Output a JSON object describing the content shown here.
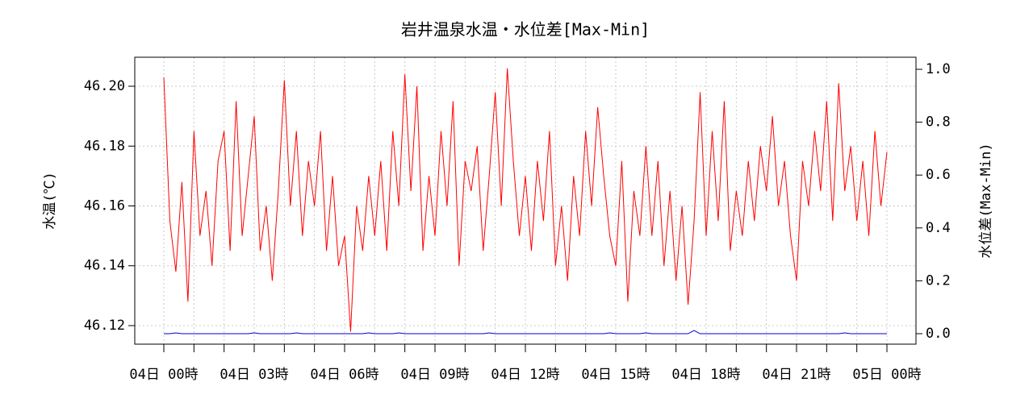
{
  "chart_data": {
    "type": "line",
    "title": "岩井温泉水温・水位差[Max-Min]",
    "ylabel": "水温(℃)",
    "y2label": "水位差(Max-Min)",
    "x": [
      0,
      0.2,
      0.4,
      0.6,
      0.8,
      1,
      1.2,
      1.4,
      1.6,
      1.8,
      2,
      2.2,
      2.4,
      2.6,
      2.8,
      3,
      3.2,
      3.4,
      3.6,
      3.8,
      4,
      4.2,
      4.4,
      4.6,
      4.8,
      5,
      5.2,
      5.4,
      5.6,
      5.8,
      6,
      6.2,
      6.4,
      6.6,
      6.8,
      7,
      7.2,
      7.4,
      7.6,
      7.8,
      8,
      8.2,
      8.4,
      8.6,
      8.8,
      9,
      9.2,
      9.4,
      9.6,
      9.8,
      10,
      10.2,
      10.4,
      10.6,
      10.8,
      11,
      11.2,
      11.4,
      11.6,
      11.8,
      12,
      12.2,
      12.4,
      12.6,
      12.8,
      13,
      13.2,
      13.4,
      13.6,
      13.8,
      14,
      14.2,
      14.4,
      14.6,
      14.8,
      15,
      15.2,
      15.4,
      15.6,
      15.8,
      16,
      16.2,
      16.4,
      16.6,
      16.8,
      17,
      17.2,
      17.4,
      17.6,
      17.8,
      18,
      18.2,
      18.4,
      18.6,
      18.8,
      19,
      19.2,
      19.4,
      19.6,
      19.8,
      20,
      20.2,
      20.4,
      20.6,
      20.8,
      21,
      21.2,
      21.4,
      21.6,
      21.8,
      22,
      22.2,
      22.4,
      22.6,
      22.8,
      23,
      23.2,
      23.4,
      23.6,
      23.8,
      24
    ],
    "series": [
      {
        "name": "水温",
        "color": "#ff0000",
        "values": [
          46.203,
          46.155,
          46.138,
          46.168,
          46.128,
          46.185,
          46.15,
          46.165,
          46.14,
          46.175,
          46.185,
          46.145,
          46.195,
          46.15,
          46.17,
          46.19,
          46.145,
          46.16,
          46.135,
          46.165,
          46.202,
          46.16,
          46.185,
          46.15,
          46.175,
          46.16,
          46.185,
          46.145,
          46.17,
          46.14,
          46.15,
          46.118,
          46.16,
          46.145,
          46.17,
          46.15,
          46.175,
          46.145,
          46.185,
          46.16,
          46.204,
          46.165,
          46.2,
          46.145,
          46.17,
          46.15,
          46.185,
          46.16,
          46.195,
          46.14,
          46.175,
          46.165,
          46.18,
          46.145,
          46.17,
          46.198,
          46.16,
          46.206,
          46.175,
          46.15,
          46.17,
          46.145,
          46.175,
          46.155,
          46.185,
          46.14,
          46.16,
          46.135,
          46.17,
          46.15,
          46.185,
          46.16,
          46.193,
          46.17,
          46.15,
          46.14,
          46.175,
          46.128,
          46.165,
          46.15,
          46.18,
          46.15,
          46.175,
          46.14,
          46.165,
          46.135,
          46.16,
          46.127,
          46.155,
          46.198,
          46.15,
          46.185,
          46.155,
          46.195,
          46.145,
          46.165,
          46.15,
          46.175,
          46.155,
          46.18,
          46.165,
          46.19,
          46.16,
          46.175,
          46.15,
          46.135,
          46.175,
          46.16,
          46.185,
          46.165,
          46.195,
          46.155,
          46.201,
          46.165,
          46.18,
          46.155,
          46.175,
          46.15,
          46.185,
          46.16,
          46.178
        ]
      },
      {
        "name": "水位差",
        "color": "#0000cc",
        "axis": "y2",
        "values": [
          0,
          0,
          0.003,
          0,
          0,
          0,
          0,
          0,
          0,
          0,
          0,
          0,
          0,
          0,
          0,
          0.003,
          0,
          0,
          0,
          0,
          0,
          0,
          0.003,
          0,
          0,
          0,
          0,
          0,
          0,
          0,
          0,
          0,
          0,
          0,
          0.003,
          0,
          0,
          0,
          0,
          0.003,
          0,
          0,
          0,
          0,
          0,
          0,
          0,
          0,
          0,
          0,
          0,
          0,
          0,
          0,
          0.003,
          0,
          0,
          0,
          0,
          0,
          0,
          0,
          0,
          0,
          0,
          0,
          0,
          0,
          0,
          0,
          0,
          0,
          0,
          0,
          0.003,
          0,
          0,
          0,
          0,
          0,
          0.003,
          0,
          0,
          0,
          0,
          0,
          0,
          0,
          0.012,
          0,
          0,
          0,
          0,
          0,
          0,
          0,
          0,
          0,
          0,
          0,
          0,
          0,
          0,
          0,
          0,
          0,
          0,
          0,
          0,
          0,
          0,
          0,
          0,
          0.003,
          0,
          0,
          0,
          0,
          0,
          0,
          0
        ]
      }
    ],
    "xlim": [
      -0.964,
      24.964
    ],
    "xticks": [
      {
        "value": 0,
        "label": "04日 00時"
      },
      {
        "value": 3,
        "label": "04日 03時"
      },
      {
        "value": 6,
        "label": "04日 06時"
      },
      {
        "value": 9,
        "label": "04日 09時"
      },
      {
        "value": 12,
        "label": "04日 12時"
      },
      {
        "value": 15,
        "label": "04日 15時"
      },
      {
        "value": 18,
        "label": "04日 18時"
      },
      {
        "value": 21,
        "label": "04日 21時"
      },
      {
        "value": 24,
        "label": "05日 00時"
      }
    ],
    "xminor_ticks": [
      1,
      2,
      4,
      5,
      7,
      8,
      10,
      11,
      13,
      14,
      16,
      17,
      19,
      20,
      22,
      23
    ],
    "ylim": [
      46.1138,
      46.2097
    ],
    "yticks": [
      46.12,
      46.14,
      46.16,
      46.18,
      {
        "value": 46.2,
        "label": "46.20"
      }
    ],
    "y2lim": [
      -0.0396,
      1.0457
    ],
    "y2ticks": [
      {
        "value": 0,
        "label": "0.0"
      },
      0.2,
      0.4,
      0.6,
      0.8,
      {
        "value": 1,
        "label": "1.0"
      }
    ],
    "grid": true
  }
}
